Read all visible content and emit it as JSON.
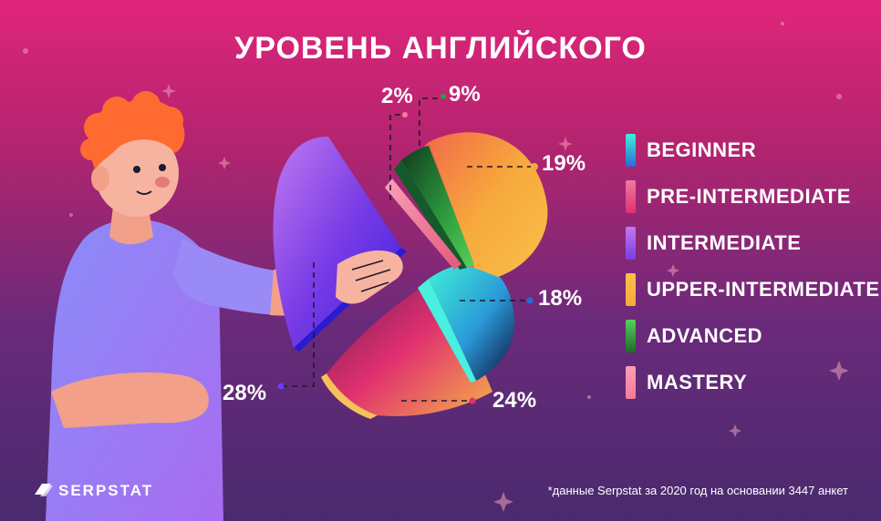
{
  "title": "УРОВЕНЬ АНГЛИЙСКОГО",
  "footnote": "*данные Serpstat за 2020 год на основании 3447 анкет",
  "logo": {
    "text": "SERPSTAT",
    "icon": "serpstat-logo-icon"
  },
  "chart_data": {
    "type": "pie",
    "title": "УРОВЕНЬ АНГЛИЙСКОГО",
    "legend_position": "right",
    "categories": [
      "BEGINNER",
      "PRE-INTERMEDIATE",
      "INTERMEDIATE",
      "UPPER-INTERMEDIATE",
      "ADVANCED",
      "MASTERY"
    ],
    "values": [
      18,
      24,
      28,
      19,
      9,
      2
    ],
    "value_labels": [
      "18%",
      "24%",
      "28%",
      "19%",
      "9%",
      "2%"
    ],
    "colors": [
      "#2fc3e8",
      "#e0306f",
      "#8a3cf0",
      "#f7a93c",
      "#2e9e3e",
      "#f47a9a"
    ]
  }
}
